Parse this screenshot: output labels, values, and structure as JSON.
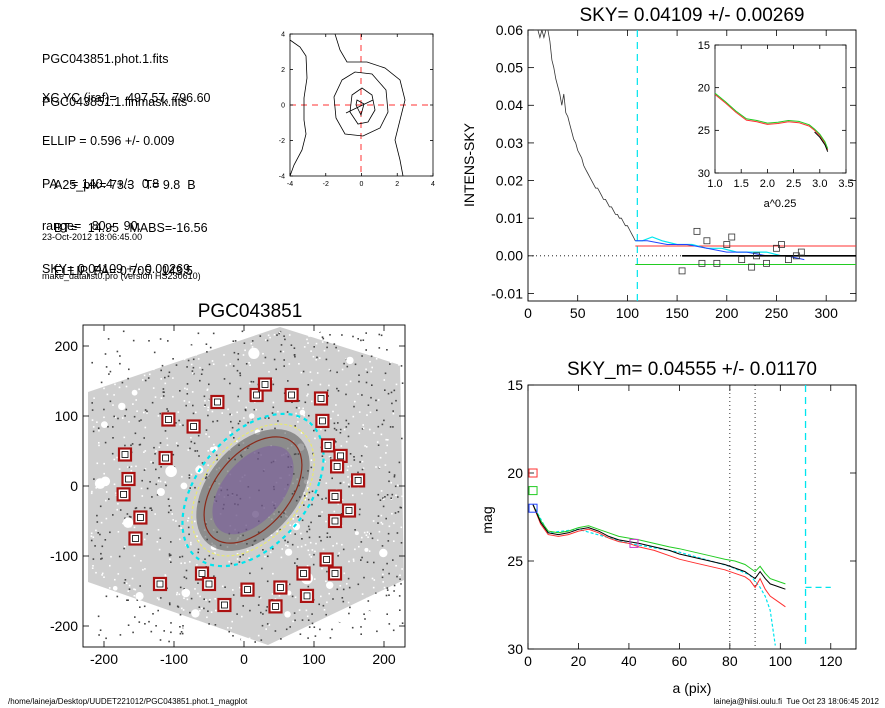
{
  "header": {
    "lines1": [
      "PGC043851.phot.1.fits",
      "PGC043851.1.finmask.fits"
    ],
    "lines2": [
      "XC,YC (iraf)=   497.57, 796.60",
      "ELLIP = 0.596 +/- 0.009",
      "PA    = 140.4 +/-   0.8",
      "range=   80.-   90.",
      "SKY= 0.04109 +/- 0.00269"
    ],
    "lines3": [
      "A25_pix= 73.3   T= 9.8  B",
      "BT=   14.95   MABS=-16.56",
      "ELLIP, PA= 0.705   143.5"
    ],
    "lines4": [
      "23-Oct-2012 18:06:45.00",
      "make_datalist0.pro (version HS230610)"
    ]
  },
  "footer": {
    "left": "/home/laineja/Desktop/UUDET221012/PGC043851.phot.1_magplot",
    "right": "laineja@hiisi.oulu.fi  Tue Oct 23 18:06:45 2012"
  },
  "colors": {
    "cyan": "#00e5ee",
    "red": "#ff3030",
    "green": "#22cc22",
    "blue": "#2244ff",
    "magenta": "#cc33cc",
    "yellow": "#e8e870",
    "boxred": "#aa1111"
  },
  "chart_data": [
    {
      "id": "contour",
      "type": "contour",
      "xlim": [
        -4,
        4
      ],
      "ylim": [
        -4,
        4
      ],
      "xticks": [
        "-4",
        "-2",
        "0",
        "2",
        "4"
      ],
      "yticks": [
        "4",
        "2",
        "0",
        "-2",
        "-4"
      ]
    },
    {
      "id": "sky",
      "type": "line",
      "title": "SKY= 0.04109 +/- 0.00269",
      "ylabel": "INTENS-SKY",
      "xlim": [
        0,
        330
      ],
      "ylim": [
        -0.012,
        0.06
      ],
      "xticks": [
        "0",
        "50",
        "100",
        "150",
        "200",
        "250",
        "300"
      ],
      "yticks": [
        "0.06",
        "0.05",
        "0.04",
        "0.03",
        "0.02",
        "0.01",
        "0.00",
        "-0.01"
      ],
      "profile_x": [
        10,
        12,
        14,
        16,
        18,
        20,
        22,
        24,
        26,
        28,
        30,
        32,
        34,
        36,
        38,
        40,
        42,
        44,
        46,
        48,
        50,
        52,
        54,
        56,
        58,
        60,
        62,
        64,
        66,
        68,
        70,
        72,
        74,
        76,
        78,
        80,
        82,
        84,
        86,
        88,
        90,
        92,
        94,
        96,
        98,
        100,
        102,
        104,
        106,
        108
      ],
      "profile_y": [
        0.06,
        0.058,
        0.06,
        0.058,
        0.06,
        0.06,
        0.057,
        0.052,
        0.05,
        0.047,
        0.045,
        0.043,
        0.04,
        0.043,
        0.038,
        0.037,
        0.035,
        0.033,
        0.031,
        0.03,
        0.028,
        0.027,
        0.026,
        0.024,
        0.023,
        0.022,
        0.021,
        0.02,
        0.019,
        0.018,
        0.018,
        0.017,
        0.016,
        0.015,
        0.015,
        0.014,
        0.013,
        0.013,
        0.012,
        0.011,
        0.011,
        0.01,
        0.01,
        0.009,
        0.008,
        0.008,
        0.007,
        0.006,
        0.005,
        0.004
      ],
      "cyan_x": [
        108,
        115,
        125,
        135,
        150,
        165,
        180,
        195,
        210,
        225,
        240,
        255,
        270,
        278
      ],
      "cyan_y": [
        0.004,
        0.004,
        0.005,
        0.004,
        0.003,
        0.003,
        0.002,
        0.002,
        0.001,
        0.001,
        0.001,
        0.0,
        0.0,
        0.0
      ],
      "blue_x": [
        108,
        120,
        140,
        160,
        180,
        200,
        220,
        240,
        260,
        278
      ],
      "blue_y": [
        0.004,
        0.004,
        0.003,
        0.003,
        0.002,
        0.001,
        0.001,
        0.0,
        0.0,
        -0.001
      ],
      "red_y": 0.0026,
      "green_y": -0.0023,
      "black_y": 0.0,
      "black_x": [
        155,
        330
      ],
      "vline_x": 110,
      "squares": [
        [
          155,
          -0.004
        ],
        [
          170,
          0.0065
        ],
        [
          175,
          -0.002
        ],
        [
          180,
          0.004
        ],
        [
          190,
          -0.002
        ],
        [
          200,
          0.003
        ],
        [
          205,
          0.005
        ],
        [
          215,
          -0.001
        ],
        [
          225,
          -0.003
        ],
        [
          230,
          0.0
        ],
        [
          240,
          -0.002
        ],
        [
          250,
          0.002
        ],
        [
          255,
          0.003
        ],
        [
          262,
          -0.001
        ],
        [
          270,
          0.0
        ],
        [
          275,
          0.001
        ]
      ],
      "inset": {
        "xlabel": "a^0.25",
        "xlim": [
          1.0,
          3.5
        ],
        "ylim": [
          15,
          30
        ],
        "xticks": [
          "1.0",
          "1.5",
          "2.0",
          "2.5",
          "3.0",
          "3.5"
        ],
        "yticks": [
          "15",
          "20",
          "25",
          "30"
        ],
        "x": [
          1.0,
          1.2,
          1.4,
          1.6,
          1.8,
          2.0,
          2.2,
          2.4,
          2.6,
          2.8,
          2.9,
          3.0,
          3.1,
          3.15
        ],
        "y": [
          20.8,
          21.8,
          22.9,
          23.8,
          24.0,
          24.3,
          24.2,
          24.0,
          24.1,
          24.5,
          25.0,
          25.6,
          26.5,
          27.3
        ]
      }
    },
    {
      "id": "image",
      "type": "image",
      "title": "PGC043851",
      "xlim": [
        -230,
        230
      ],
      "ylim": [
        -230,
        230
      ],
      "xticks": [
        "-200",
        "-100",
        "0",
        "100",
        "200"
      ],
      "yticks": [
        "200",
        "100",
        "0",
        "-100",
        "-200"
      ],
      "mask_boxes": [
        [
          -170,
          45
        ],
        [
          -165,
          10
        ],
        [
          -172,
          -12
        ],
        [
          -148,
          -45
        ],
        [
          -155,
          -75
        ],
        [
          -108,
          95
        ],
        [
          -112,
          40
        ],
        [
          -72,
          85
        ],
        [
          -38,
          120
        ],
        [
          18,
          130
        ],
        [
          30,
          145
        ],
        [
          68,
          130
        ],
        [
          110,
          125
        ],
        [
          112,
          93
        ],
        [
          120,
          58
        ],
        [
          138,
          43
        ],
        [
          133,
          28
        ],
        [
          163,
          8
        ],
        [
          130,
          -15
        ],
        [
          150,
          -35
        ],
        [
          130,
          -50
        ],
        [
          118,
          -105
        ],
        [
          130,
          -125
        ],
        [
          85,
          -125
        ],
        [
          90,
          -157
        ],
        [
          52,
          -145
        ],
        [
          45,
          -172
        ],
        [
          5,
          -148
        ],
        [
          -28,
          -170
        ],
        [
          -60,
          -125
        ],
        [
          -50,
          -140
        ],
        [
          -120,
          -140
        ]
      ]
    },
    {
      "id": "mag",
      "type": "line",
      "title": "SKY_m=  0.04555 +/- 0.01170",
      "xlabel": "a (pix)",
      "ylabel": "mag",
      "xlim": [
        0,
        130
      ],
      "ylim": [
        15,
        30
      ],
      "xticks": [
        "0",
        "20",
        "40",
        "60",
        "80",
        "100",
        "120"
      ],
      "yticks": [
        "15",
        "20",
        "25",
        "30"
      ],
      "x": [
        2,
        5,
        8,
        12,
        16,
        20,
        24,
        28,
        32,
        36,
        40,
        44,
        50,
        56,
        60,
        66,
        72,
        78,
        82,
        86,
        88,
        90,
        92,
        94,
        96,
        98,
        100,
        102
      ],
      "black": [
        21.8,
        22.8,
        23.4,
        23.5,
        23.4,
        23.2,
        23.1,
        23.3,
        23.6,
        23.8,
        23.9,
        24.0,
        24.2,
        24.4,
        24.6,
        24.8,
        25.0,
        25.2,
        25.4,
        25.6,
        25.8,
        26.0,
        25.6,
        26.0,
        26.3,
        26.4,
        26.5,
        26.6
      ],
      "red": [
        21.8,
        22.9,
        23.5,
        23.6,
        23.5,
        23.3,
        23.2,
        23.4,
        23.7,
        23.9,
        24.0,
        24.2,
        24.4,
        24.7,
        24.9,
        25.1,
        25.3,
        25.5,
        25.7,
        25.9,
        26.1,
        26.5,
        26.0,
        26.6,
        27.0,
        27.2,
        27.4,
        27.6
      ],
      "green": [
        21.8,
        22.7,
        23.3,
        23.4,
        23.3,
        23.1,
        23.0,
        23.2,
        23.4,
        23.6,
        23.7,
        23.8,
        24.0,
        24.2,
        24.3,
        24.5,
        24.7,
        24.9,
        25.0,
        25.2,
        25.4,
        25.6,
        25.3,
        25.7,
        26.0,
        26.1,
        26.2,
        26.3
      ],
      "cyan_x": [
        2,
        8,
        20,
        40,
        60,
        80,
        88,
        92,
        94,
        96,
        98
      ],
      "cyan": [
        21.8,
        23.4,
        23.2,
        24.0,
        24.5,
        25.3,
        25.8,
        26.5,
        27.0,
        27.8,
        29.8
      ],
      "squares": [
        {
          "x": 2,
          "y": 20.0,
          "color": "red"
        },
        {
          "x": 2,
          "y": 21.0,
          "color": "green"
        },
        {
          "x": 2,
          "y": 22.0,
          "color": "blue"
        },
        {
          "x": 42,
          "y": 24.0,
          "color": "magenta"
        }
      ],
      "dotted_vlines": [
        80,
        90
      ],
      "cyan_vline": 110,
      "cyan_hline": {
        "x0": 110,
        "x1": 120,
        "y": 26.5
      }
    }
  ]
}
